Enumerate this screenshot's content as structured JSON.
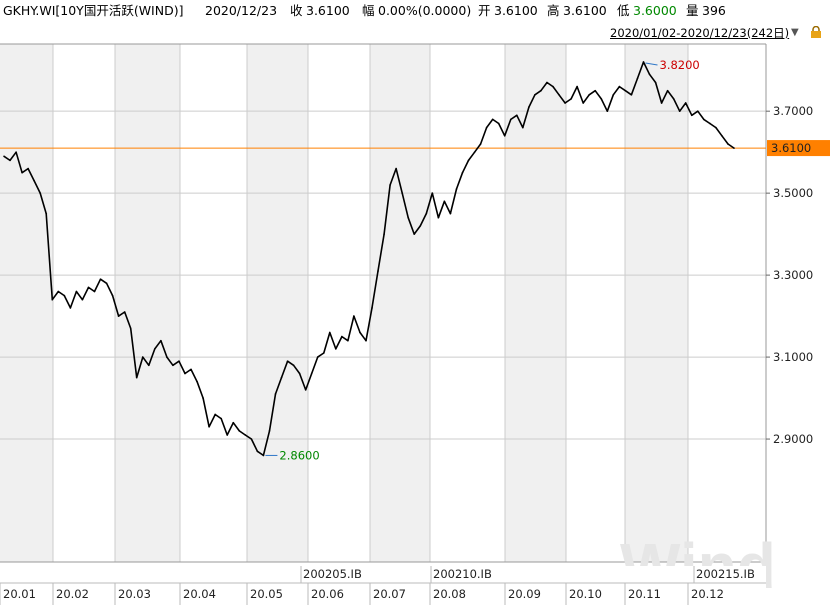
{
  "header": {
    "instrument": "GKHY.WI[10Y国开活跃(WIND)]",
    "date": "2020/12/23",
    "close_label": "收",
    "close_value": "3.6100",
    "change_label": "幅",
    "change_value": "0.00%(0.0000)",
    "open_label": "开",
    "open_value": "3.6100",
    "high_label": "高",
    "high_value": "3.6100",
    "low_label": "低",
    "low_value": "3.6000",
    "volume_label": "量",
    "volume_value": "396"
  },
  "range": {
    "text": "2020/01/02-2020/12/23(242日)",
    "dropdown_icon": "triangle-down-icon",
    "lock_icon": "lock-icon"
  },
  "watermark": "Wind",
  "colors": {
    "line": "#000000",
    "current_price": "#ff8000",
    "shade": "#f0f0f0",
    "grid": "#cccccc",
    "high_label": "#cc0000",
    "low_label": "#008800"
  },
  "chart_data": {
    "type": "line",
    "ylim": [
      2.6,
      3.82
    ],
    "y_ticks": [
      2.9,
      3.1,
      3.3,
      3.5,
      3.7
    ],
    "y_tick_labels": [
      "2.9000",
      "3.1000",
      "3.3000",
      "3.5000",
      "3.7000"
    ],
    "x_tick_labels": [
      "20.01",
      "20.02",
      "20.03",
      "20.04",
      "20.05",
      "20.06",
      "20.07",
      "20.08",
      "20.09",
      "20.10",
      "20.11",
      "20.12"
    ],
    "contract_labels": [
      "200205.IB",
      "200210.IB",
      "200215.IB"
    ],
    "current_value": 3.61,
    "current_label": "3.6100",
    "max_value": 3.82,
    "max_label": "3.8200",
    "min_value": 2.86,
    "min_label": "2.8600",
    "series": [
      {
        "x": [
          0,
          2,
          4,
          6,
          8,
          10,
          12,
          14,
          16,
          18,
          20,
          22,
          24,
          26,
          28,
          30,
          32,
          34,
          36,
          38,
          40,
          42,
          44,
          46,
          48,
          50,
          52,
          54,
          56,
          58,
          60,
          62,
          64,
          66,
          68,
          70,
          72,
          74,
          76,
          78,
          80,
          82,
          84,
          86,
          88,
          90,
          92,
          94,
          96,
          98,
          100,
          102,
          104,
          106,
          108,
          110,
          112,
          114,
          116,
          118,
          120,
          122,
          124,
          126,
          128,
          130,
          132,
          134,
          136,
          138,
          140,
          142,
          144,
          146,
          148,
          150,
          152,
          154,
          156,
          158,
          160,
          162,
          164,
          166,
          168,
          170,
          172,
          174,
          176,
          178,
          180,
          182,
          184,
          186,
          188,
          190,
          192,
          194,
          196,
          198,
          200,
          202,
          204,
          206,
          208,
          210,
          212,
          214,
          216,
          218,
          220,
          222,
          224,
          226,
          228,
          230,
          232,
          234,
          236,
          238,
          240,
          242
        ],
        "values": [
          3.59,
          3.58,
          3.6,
          3.55,
          3.56,
          3.53,
          3.5,
          3.45,
          3.24,
          3.26,
          3.25,
          3.22,
          3.26,
          3.24,
          3.27,
          3.26,
          3.29,
          3.28,
          3.25,
          3.2,
          3.21,
          3.17,
          3.05,
          3.1,
          3.08,
          3.12,
          3.14,
          3.1,
          3.08,
          3.09,
          3.06,
          3.07,
          3.04,
          3.0,
          2.93,
          2.96,
          2.95,
          2.91,
          2.94,
          2.92,
          2.91,
          2.9,
          2.87,
          2.86,
          2.92,
          3.01,
          3.05,
          3.09,
          3.08,
          3.06,
          3.02,
          3.06,
          3.1,
          3.11,
          3.16,
          3.12,
          3.15,
          3.14,
          3.2,
          3.16,
          3.14,
          3.22,
          3.31,
          3.4,
          3.52,
          3.56,
          3.5,
          3.44,
          3.4,
          3.42,
          3.45,
          3.5,
          3.44,
          3.48,
          3.45,
          3.51,
          3.55,
          3.58,
          3.6,
          3.62,
          3.66,
          3.68,
          3.67,
          3.64,
          3.68,
          3.69,
          3.66,
          3.71,
          3.74,
          3.75,
          3.77,
          3.76,
          3.74,
          3.72,
          3.73,
          3.76,
          3.72,
          3.74,
          3.75,
          3.73,
          3.7,
          3.74,
          3.76,
          3.75,
          3.74,
          3.78,
          3.82,
          3.79,
          3.77,
          3.72,
          3.75,
          3.73,
          3.7,
          3.72,
          3.69,
          3.7,
          3.68,
          3.67,
          3.66,
          3.64,
          3.62,
          3.61
        ]
      }
    ]
  }
}
